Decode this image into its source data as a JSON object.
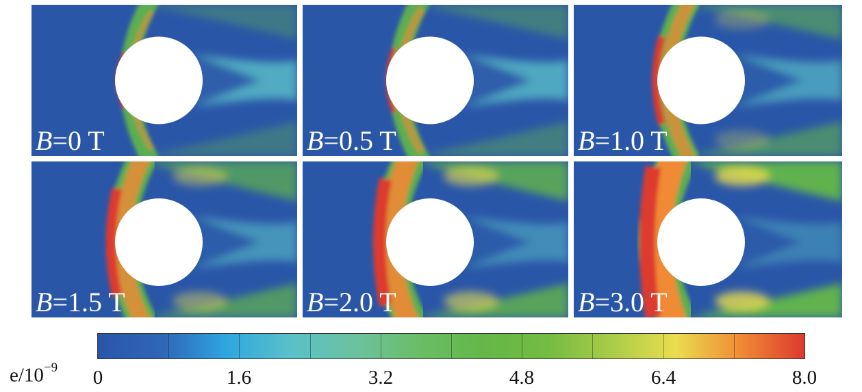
{
  "panels": [
    {
      "variable": "B",
      "value_text": "=0 T",
      "intensity": 0.0
    },
    {
      "variable": "B",
      "value_text": "=0.5 T",
      "intensity": 0.1
    },
    {
      "variable": "B",
      "value_text": "=1.0 T",
      "intensity": 0.35
    },
    {
      "variable": "B",
      "value_text": "=1.5 T",
      "intensity": 0.55
    },
    {
      "variable": "B",
      "value_text": "=2.0 T",
      "intensity": 0.75
    },
    {
      "variable": "B",
      "value_text": "=3.0 T",
      "intensity": 1.0
    }
  ],
  "colorbar": {
    "unit_base": "e/10",
    "unit_exp": "−9",
    "ticks": [
      "0",
      "1.6",
      "3.2",
      "4.8",
      "6.4",
      "8.0"
    ],
    "range": [
      0,
      8.0
    ],
    "colors": [
      "#2a56a8",
      "#2f66b6",
      "#2fa6df",
      "#5ac1c9",
      "#6cc2a0",
      "#6bbd66",
      "#63b748",
      "#74bb43",
      "#a9cc48",
      "#eadd4e",
      "#f08a35",
      "#dd3a2e"
    ]
  }
}
